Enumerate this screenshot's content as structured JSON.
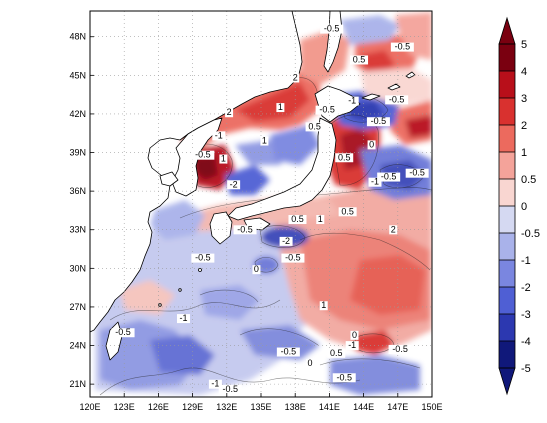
{
  "map": {
    "lon_ticks": [
      "120E",
      "123E",
      "126E",
      "129E",
      "132E",
      "135E",
      "138E",
      "141E",
      "144E",
      "147E",
      "150E"
    ],
    "lat_ticks": [
      "21N",
      "24N",
      "27N",
      "30N",
      "33N",
      "36N",
      "39N",
      "42N",
      "45N",
      "48N"
    ],
    "lon_range": [
      120,
      150
    ],
    "lat_range": [
      20,
      50
    ],
    "grid_lines": "dotted"
  },
  "colorbar": {
    "labels": [
      "5",
      "4",
      "3",
      "2",
      "1",
      "0.5",
      "0",
      "-0.5",
      "-1",
      "-2",
      "-3",
      "-4",
      "-5"
    ],
    "colors": [
      "#7a0010",
      "#b80f1a",
      "#d9312f",
      "#ec6a5e",
      "#f4a39a",
      "#f9d6d1",
      "#d5d9f2",
      "#a9b2ea",
      "#7a86e0",
      "#4f5fd4",
      "#2c38b0",
      "#10187a"
    ],
    "extend": "both"
  },
  "contour_labels": [
    {
      "text": "-0.5",
      "lon": 141.2,
      "lat": 48.4
    },
    {
      "text": "-0.5",
      "lon": 147.4,
      "lat": 47.0
    },
    {
      "text": "0.5",
      "lon": 143.6,
      "lat": 46.0
    },
    {
      "text": "2",
      "lon": 138.0,
      "lat": 44.6
    },
    {
      "text": "1",
      "lon": 136.7,
      "lat": 42.3
    },
    {
      "text": "-0.5",
      "lon": 140.8,
      "lat": 42.1
    },
    {
      "text": "-1",
      "lon": 143.0,
      "lat": 42.8
    },
    {
      "text": "-0.5",
      "lon": 146.9,
      "lat": 42.9
    },
    {
      "text": "2",
      "lon": 132.2,
      "lat": 41.9
    },
    {
      "text": "-0.5",
      "lon": 145.3,
      "lat": 41.2
    },
    {
      "text": "0.5",
      "lon": 139.7,
      "lat": 40.8
    },
    {
      "text": "-1",
      "lon": 131.3,
      "lat": 40.1
    },
    {
      "text": "1",
      "lon": 135.3,
      "lat": 39.7
    },
    {
      "text": "0",
      "lon": 144.7,
      "lat": 39.4
    },
    {
      "text": "-0.5",
      "lon": 129.9,
      "lat": 38.6
    },
    {
      "text": "1",
      "lon": 131.7,
      "lat": 38.3
    },
    {
      "text": "0.5",
      "lon": 142.3,
      "lat": 38.4
    },
    {
      "text": "-0.5",
      "lon": 148.7,
      "lat": 37.2
    },
    {
      "text": "-0.5",
      "lon": 146.2,
      "lat": 36.9
    },
    {
      "text": "-1",
      "lon": 145.0,
      "lat": 36.5
    },
    {
      "text": "-2",
      "lon": 132.6,
      "lat": 36.3
    },
    {
      "text": "0.5",
      "lon": 138.2,
      "lat": 33.6
    },
    {
      "text": "1",
      "lon": 140.2,
      "lat": 33.6
    },
    {
      "text": "0.5",
      "lon": 142.6,
      "lat": 34.2
    },
    {
      "text": "2",
      "lon": 146.6,
      "lat": 32.8
    },
    {
      "text": "-0.5",
      "lon": 133.6,
      "lat": 32.8
    },
    {
      "text": "-2",
      "lon": 137.2,
      "lat": 31.9
    },
    {
      "text": "-0.5",
      "lon": 129.9,
      "lat": 30.6
    },
    {
      "text": "-0.5",
      "lon": 137.8,
      "lat": 30.6
    },
    {
      "text": "0",
      "lon": 134.6,
      "lat": 29.7
    },
    {
      "text": "-1",
      "lon": 128.2,
      "lat": 25.9
    },
    {
      "text": "1",
      "lon": 140.5,
      "lat": 26.9
    },
    {
      "text": "-0.5",
      "lon": 122.9,
      "lat": 24.8
    },
    {
      "text": "-0.5",
      "lon": 137.4,
      "lat": 23.3
    },
    {
      "text": "0.5",
      "lon": 141.6,
      "lat": 23.2
    },
    {
      "text": "-1",
      "lon": 143.0,
      "lat": 23.8
    },
    {
      "text": "0",
      "lon": 143.2,
      "lat": 24.6
    },
    {
      "text": "-0.5",
      "lon": 147.2,
      "lat": 23.5
    },
    {
      "text": "0",
      "lon": 139.3,
      "lat": 22.4
    },
    {
      "text": "-0.5",
      "lon": 142.3,
      "lat": 21.3
    },
    {
      "text": "-1",
      "lon": 131.0,
      "lat": 20.8
    },
    {
      "text": "-0.5",
      "lon": 132.3,
      "lat": 20.4
    }
  ]
}
